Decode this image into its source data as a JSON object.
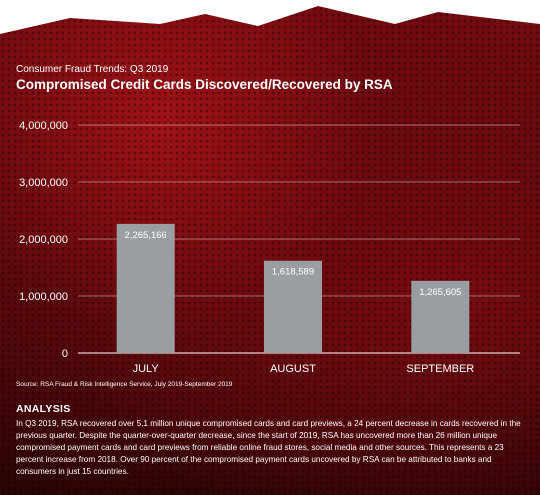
{
  "header": {
    "subtitle": "Consumer Fraud Trends: Q3 2019",
    "title": "Compromised Credit Cards Discovered/Recovered by RSA"
  },
  "chart_data": {
    "type": "bar",
    "categories": [
      "JULY",
      "AUGUST",
      "SEPTEMBER"
    ],
    "values": [
      2265166,
      1618589,
      1265605
    ],
    "value_labels": [
      "2,265,166",
      "1,618,589",
      "1,265,605"
    ],
    "ylim": [
      0,
      4000000
    ],
    "yticks": [
      0,
      1000000,
      2000000,
      3000000,
      4000000
    ],
    "ytick_labels": [
      "0",
      "1,000,000",
      "2,000,000",
      "3,000,000",
      "4,000,000"
    ],
    "grid": true,
    "legend": "none",
    "bar_color": "#999ea3"
  },
  "source": "Source: RSA Fraud & Risk Intelligence Service, July 2019-September 2019",
  "analysis": {
    "heading": "ANALYSIS",
    "body": "In Q3 2019, RSA recovered over 5.1 million unique compromised cards and card previews, a 24 percent decrease in cards recovered in the previous quarter. Despite the quarter-over-quarter decrease, since the start of 2019, RSA has uncovered more than 26 million unique compromised payment cards and card previews from reliable online fraud stores, social media and other sources. This represents a 23 percent increase from 2018. Over 90 percent of the compromised payment cards uncovered by RSA can be attributed to banks and consumers in just 15 countries."
  }
}
